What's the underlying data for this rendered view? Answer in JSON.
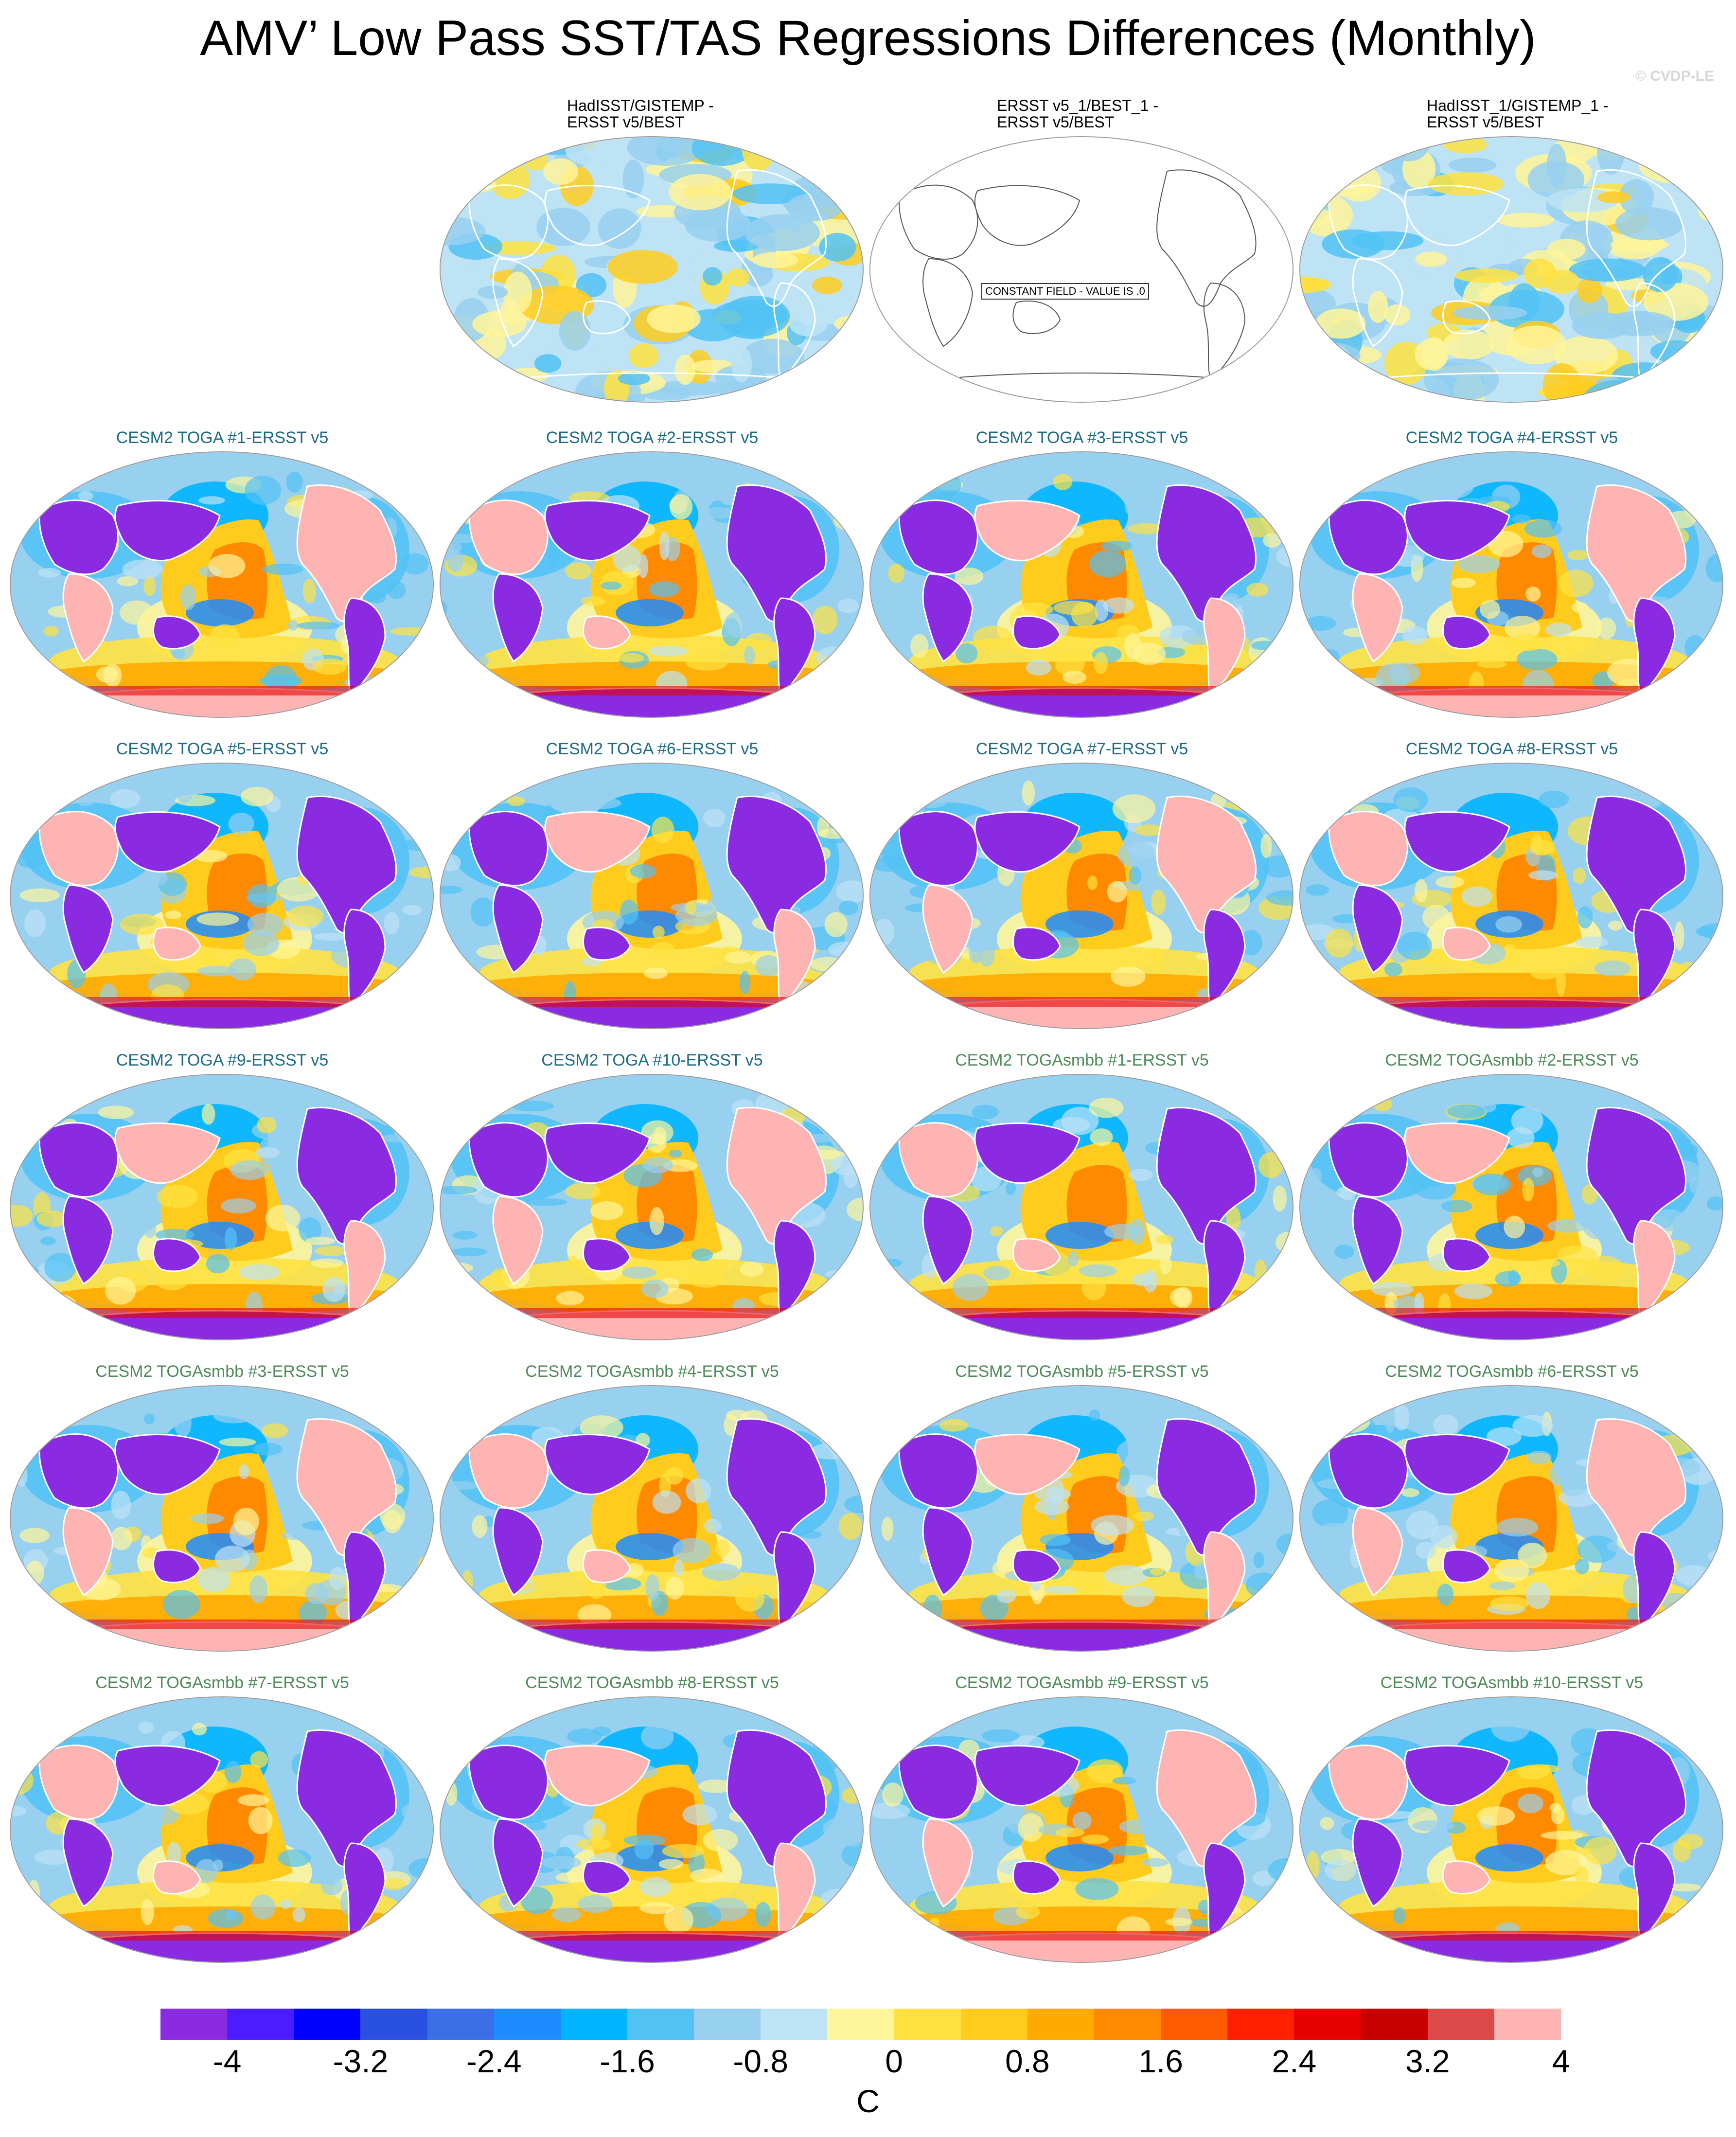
{
  "title": "AMV’ Low Pass SST/TAS Regressions Differences (Monthly)",
  "copyright": "© CVDP-LE",
  "constant_field_text": "CONSTANT FIELD - VALUE IS .0",
  "chart_data": {
    "type": "heatmap",
    "units": "C",
    "colorbar": {
      "colors": [
        "#8a2be2",
        "#4b1cff",
        "#0000ff",
        "#2a50e0",
        "#3c6ee6",
        "#1e8cff",
        "#00b4ff",
        "#52c2f5",
        "#98d0f0",
        "#bde3f5",
        "#fff59a",
        "#ffe240",
        "#ffcc1e",
        "#ffaa00",
        "#ff8a00",
        "#ff5a00",
        "#ff2000",
        "#e60000",
        "#c80000",
        "#dd4848",
        "#ffb4b4"
      ],
      "tick_labels": [
        "-4",
        "-3.2",
        "-2.4",
        "-1.6",
        "-0.8",
        "0",
        "0.8",
        "1.6",
        "2.4",
        "3.2",
        "4"
      ],
      "range": [
        -4,
        4
      ]
    },
    "panels": [
      {
        "label": "HadISST/GISTEMP -\nERSST v5/BEST",
        "group": "obs",
        "pattern": "obs"
      },
      {
        "label": "ERSST v5_1/BEST_1 -\nERSST v5/BEST",
        "group": "obs",
        "pattern": "constant"
      },
      {
        "label": "HadISST_1/GISTEMP_1 -\nERSST v5/BEST",
        "group": "obs",
        "pattern": "obs"
      },
      {
        "label": "CESM2 TOGA #1-ERSST v5",
        "group": "toga",
        "pattern": "model"
      },
      {
        "label": "CESM2 TOGA #2-ERSST v5",
        "group": "toga",
        "pattern": "model"
      },
      {
        "label": "CESM2 TOGA #3-ERSST v5",
        "group": "toga",
        "pattern": "model"
      },
      {
        "label": "CESM2 TOGA #4-ERSST v5",
        "group": "toga",
        "pattern": "model"
      },
      {
        "label": "CESM2 TOGA #5-ERSST v5",
        "group": "toga",
        "pattern": "model"
      },
      {
        "label": "CESM2 TOGA #6-ERSST v5",
        "group": "toga",
        "pattern": "model"
      },
      {
        "label": "CESM2 TOGA #7-ERSST v5",
        "group": "toga",
        "pattern": "model"
      },
      {
        "label": "CESM2 TOGA #8-ERSST v5",
        "group": "toga",
        "pattern": "model"
      },
      {
        "label": "CESM2 TOGA #9-ERSST v5",
        "group": "toga",
        "pattern": "model"
      },
      {
        "label": "CESM2 TOGA #10-ERSST v5",
        "group": "toga",
        "pattern": "model"
      },
      {
        "label": "CESM2 TOGAsmbb #1-ERSST v5",
        "group": "smbb",
        "pattern": "model"
      },
      {
        "label": "CESM2 TOGAsmbb #2-ERSST v5",
        "group": "smbb",
        "pattern": "model"
      },
      {
        "label": "CESM2 TOGAsmbb #3-ERSST v5",
        "group": "smbb",
        "pattern": "model"
      },
      {
        "label": "CESM2 TOGAsmbb #4-ERSST v5",
        "group": "smbb",
        "pattern": "model"
      },
      {
        "label": "CESM2 TOGAsmbb #5-ERSST v5",
        "group": "smbb",
        "pattern": "model"
      },
      {
        "label": "CESM2 TOGAsmbb #6-ERSST v5",
        "group": "smbb",
        "pattern": "model"
      },
      {
        "label": "CESM2 TOGAsmbb #7-ERSST v5",
        "group": "smbb",
        "pattern": "model"
      },
      {
        "label": "CESM2 TOGAsmbb #8-ERSST v5",
        "group": "smbb",
        "pattern": "model"
      },
      {
        "label": "CESM2 TOGAsmbb #9-ERSST v5",
        "group": "smbb",
        "pattern": "model"
      },
      {
        "label": "CESM2 TOGAsmbb #10-ERSST v5",
        "group": "smbb",
        "pattern": "model"
      }
    ]
  }
}
